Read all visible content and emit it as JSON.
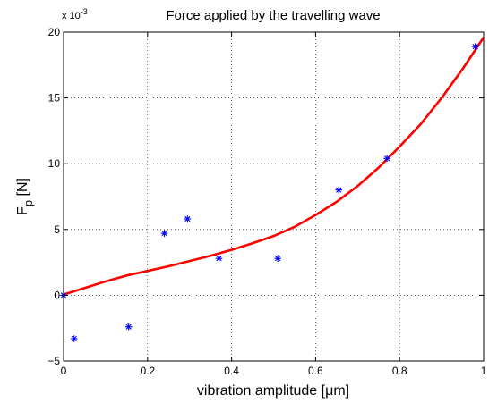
{
  "chart_data": {
    "type": "scatter",
    "title": "Force applied by the travelling wave",
    "xlabel": "vibration amplitude [μm]",
    "ylabel_main": "F",
    "ylabel_sub": "p",
    "ylabel_unit": " [N]",
    "y_exponent_prefix": "x 10",
    "y_exponent_power": "-3",
    "xlim": [
      0,
      1
    ],
    "ylim": [
      -5,
      20
    ],
    "grid": true,
    "x_ticks": [
      0,
      0.2,
      0.4,
      0.6,
      0.8,
      1
    ],
    "x_tick_labels": [
      "0",
      "0.2",
      "0.4",
      "0.6",
      "0.8",
      "1"
    ],
    "y_ticks": [
      -5,
      0,
      5,
      10,
      15,
      20
    ],
    "y_tick_labels": [
      "−5",
      "0",
      "5",
      "10",
      "15",
      "20"
    ],
    "series": [
      {
        "kind": "scatter",
        "marker": "*",
        "color": "#0000ff",
        "x": [
          0.0,
          0.025,
          0.155,
          0.24,
          0.295,
          0.37,
          0.51,
          0.655,
          0.77,
          0.98
        ],
        "y": [
          0.0,
          -3.3,
          -2.4,
          4.7,
          5.8,
          2.8,
          2.8,
          8.0,
          10.4,
          18.9
        ]
      },
      {
        "kind": "line",
        "color": "#ff0000",
        "x": [
          0,
          0.05,
          0.1,
          0.15,
          0.2,
          0.25,
          0.3,
          0.35,
          0.4,
          0.45,
          0.5,
          0.55,
          0.6,
          0.65,
          0.7,
          0.75,
          0.8,
          0.85,
          0.9,
          0.95,
          1.0
        ],
        "y": [
          0.05,
          0.55,
          1.05,
          1.5,
          1.85,
          2.2,
          2.6,
          3.0,
          3.45,
          3.95,
          4.5,
          5.2,
          6.1,
          7.1,
          8.3,
          9.7,
          11.3,
          13.0,
          15.0,
          17.2,
          19.6
        ]
      }
    ]
  }
}
